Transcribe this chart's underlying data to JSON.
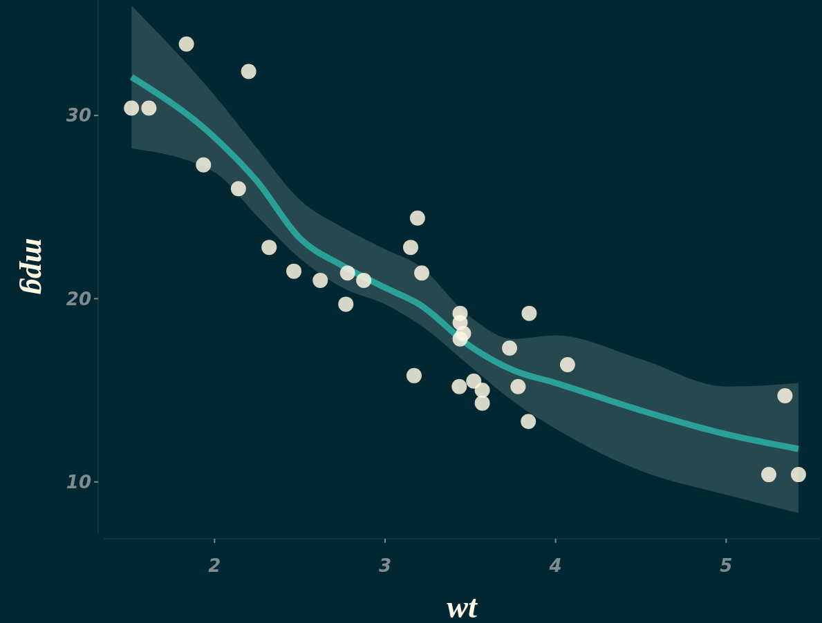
{
  "chart_data": {
    "type": "scatter",
    "xlabel": "wt",
    "ylabel": "mpg",
    "xlim": [
      1.35,
      5.55
    ],
    "ylim": [
      7.2,
      36.3
    ],
    "xticks": [
      2,
      3,
      4,
      5
    ],
    "yticks": [
      10,
      20,
      30
    ],
    "grid": false,
    "marker": "circle",
    "series": [
      {
        "color": "#fdf6e3",
        "x": [
          2.62,
          2.875,
          2.32,
          3.215,
          3.44,
          3.46,
          3.57,
          3.19,
          3.15,
          3.44,
          3.44,
          4.07,
          3.73,
          3.78,
          5.25,
          5.424,
          5.345,
          2.2,
          1.615,
          1.835,
          2.465,
          3.52,
          3.435,
          3.84,
          3.845,
          1.935,
          2.14,
          1.513,
          3.17,
          2.77,
          3.57,
          2.78
        ],
        "values": [
          21.0,
          21.0,
          22.8,
          21.4,
          18.7,
          18.1,
          14.3,
          24.4,
          22.8,
          19.2,
          17.8,
          16.4,
          17.3,
          15.2,
          10.4,
          10.4,
          14.7,
          32.4,
          30.4,
          33.9,
          21.5,
          15.5,
          15.2,
          13.3,
          19.2,
          27.3,
          26.0,
          30.4,
          15.8,
          19.7,
          15.0,
          21.4
        ]
      },
      {
        "type": "line",
        "color": "#2aa198",
        "marker": "none",
        "x": [
          1.513,
          2,
          2.25,
          2.5,
          2.75,
          3,
          3.2,
          3.5,
          3.75,
          4,
          4.5,
          5,
          5.424
        ],
        "values": [
          32.1,
          28.8,
          26.4,
          23.3,
          21.8,
          20.6,
          19.7,
          17.4,
          16.1,
          15.4,
          13.9,
          12.6,
          11.8
        ],
        "lower": [
          28.2,
          26.9,
          24.5,
          22.2,
          20.6,
          19.7,
          18.6,
          16.3,
          14.4,
          12.9,
          10.6,
          9.3,
          8.3
        ],
        "upper": [
          36.0,
          31.1,
          28.2,
          25.4,
          23.9,
          22.7,
          21.8,
          19.0,
          17.8,
          18.0,
          16.7,
          15.2,
          15.4
        ]
      }
    ]
  }
}
